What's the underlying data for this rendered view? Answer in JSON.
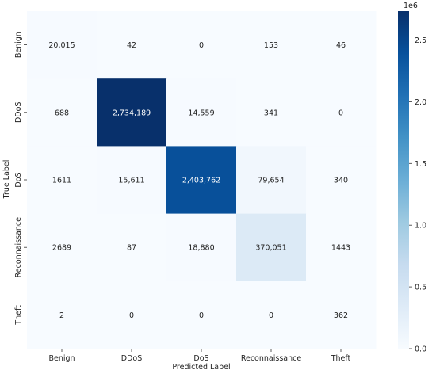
{
  "chart_data": {
    "type": "heatmap",
    "title": "",
    "xlabel": "Predicted Label",
    "ylabel": "True Label",
    "x_categories": [
      "Benign",
      "DDoS",
      "DoS",
      "Reconnaissance",
      "Theft"
    ],
    "y_categories": [
      "Benign",
      "DDoS",
      "DoS",
      "Reconnaissance",
      "Theft"
    ],
    "values": [
      [
        20015,
        42,
        0,
        153,
        46
      ],
      [
        688,
        2734189,
        14559,
        341,
        0
      ],
      [
        1611,
        15611,
        2403762,
        79654,
        340
      ],
      [
        2689,
        87,
        18880,
        370051,
        1443
      ],
      [
        2,
        0,
        0,
        0,
        362
      ]
    ],
    "cell_labels": [
      [
        "20,015",
        "42",
        "0",
        "153",
        "46"
      ],
      [
        "688",
        "2,734,189",
        "14,559",
        "341",
        "0"
      ],
      [
        "1611",
        "15,611",
        "2,403,762",
        "79,654",
        "340"
      ],
      [
        "2689",
        "87",
        "18,880",
        "370,051",
        "1443"
      ],
      [
        "2",
        "0",
        "0",
        "0",
        "362"
      ]
    ],
    "colorbar": {
      "colormap": "Blues",
      "range": [
        0,
        2734189
      ],
      "ticks": [
        0.0,
        0.5,
        1.0,
        1.5,
        2.0,
        2.5
      ],
      "tick_labels": [
        "0.0",
        "0.5",
        "1.0",
        "1.5",
        "2.0",
        "2.5"
      ],
      "multiplier_label": "1e6"
    }
  }
}
